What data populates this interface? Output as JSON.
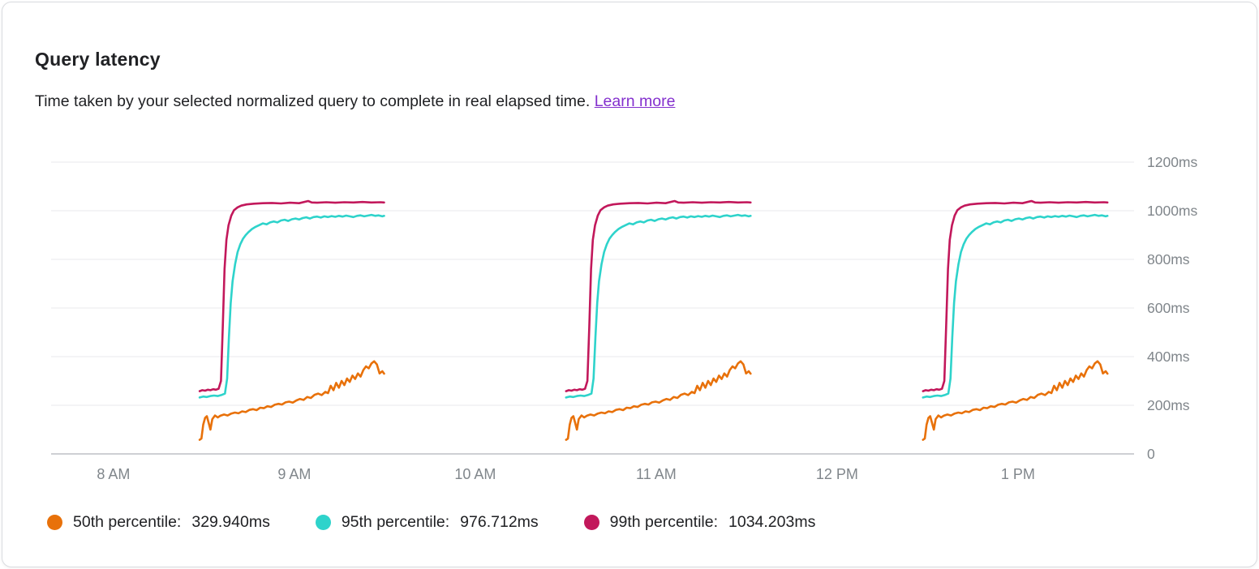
{
  "card": {
    "title": "Query latency",
    "description": "Time taken by your selected normalized query to complete in real elapsed time.",
    "learn_more_label": "Learn more"
  },
  "chart_data": {
    "type": "line",
    "title": "Query latency",
    "unit": "ms",
    "grid": true,
    "legend_position": "bottom",
    "x_axis": {
      "tick_hours": [
        8,
        9,
        10,
        11,
        12,
        13
      ],
      "tick_labels": [
        "8 AM",
        "9 AM",
        "10 AM",
        "11 AM",
        "12 PM",
        "1 PM"
      ],
      "range_hours": [
        7.655,
        13.642
      ]
    },
    "y_axis": {
      "position": "right",
      "ticks": [
        0,
        200,
        400,
        600,
        800,
        1000,
        1200
      ],
      "tick_labels": [
        "0",
        "200ms",
        "400ms",
        "600ms",
        "800ms",
        "1000ms",
        "1200ms"
      ],
      "range": [
        0,
        1200
      ]
    },
    "burst_start_hours": [
      8.476,
      10.502,
      12.475
    ],
    "series": [
      {
        "name": "50th percentile",
        "color": "#e8710a",
        "current_value": "329.940ms",
        "pattern_points": [
          [
            0.0,
            58
          ],
          [
            0.01,
            63
          ],
          [
            0.02,
            120
          ],
          [
            0.03,
            148
          ],
          [
            0.04,
            155
          ],
          [
            0.05,
            128
          ],
          [
            0.06,
            100
          ],
          [
            0.07,
            143
          ],
          [
            0.085,
            158
          ],
          [
            0.1,
            150
          ],
          [
            0.115,
            157
          ],
          [
            0.135,
            162
          ],
          [
            0.155,
            158
          ],
          [
            0.175,
            166
          ],
          [
            0.195,
            170
          ],
          [
            0.215,
            167
          ],
          [
            0.235,
            175
          ],
          [
            0.255,
            172
          ],
          [
            0.275,
            181
          ],
          [
            0.295,
            184
          ],
          [
            0.315,
            180
          ],
          [
            0.335,
            190
          ],
          [
            0.355,
            188
          ],
          [
            0.375,
            196
          ],
          [
            0.395,
            193
          ],
          [
            0.415,
            202
          ],
          [
            0.435,
            206
          ],
          [
            0.455,
            203
          ],
          [
            0.475,
            212
          ],
          [
            0.495,
            215
          ],
          [
            0.515,
            211
          ],
          [
            0.535,
            220
          ],
          [
            0.555,
            226
          ],
          [
            0.575,
            222
          ],
          [
            0.595,
            234
          ],
          [
            0.615,
            230
          ],
          [
            0.635,
            243
          ],
          [
            0.655,
            248
          ],
          [
            0.675,
            242
          ],
          [
            0.695,
            255
          ],
          [
            0.71,
            250
          ],
          [
            0.725,
            280
          ],
          [
            0.74,
            262
          ],
          [
            0.755,
            292
          ],
          [
            0.77,
            272
          ],
          [
            0.785,
            300
          ],
          [
            0.8,
            283
          ],
          [
            0.815,
            310
          ],
          [
            0.83,
            296
          ],
          [
            0.845,
            322
          ],
          [
            0.86,
            308
          ],
          [
            0.875,
            331
          ],
          [
            0.89,
            318
          ],
          [
            0.905,
            345
          ],
          [
            0.92,
            360
          ],
          [
            0.935,
            352
          ],
          [
            0.95,
            372
          ],
          [
            0.965,
            381
          ],
          [
            0.98,
            368
          ],
          [
            0.995,
            331
          ],
          [
            1.01,
            340
          ],
          [
            1.02,
            330
          ]
        ]
      },
      {
        "name": "95th percentile",
        "color": "#2ed3cb",
        "current_value": "976.712ms",
        "pattern_points": [
          [
            0.0,
            232
          ],
          [
            0.02,
            236
          ],
          [
            0.04,
            234
          ],
          [
            0.06,
            238
          ],
          [
            0.08,
            240
          ],
          [
            0.1,
            238
          ],
          [
            0.12,
            242
          ],
          [
            0.14,
            248
          ],
          [
            0.152,
            310
          ],
          [
            0.162,
            480
          ],
          [
            0.172,
            620
          ],
          [
            0.182,
            710
          ],
          [
            0.196,
            780
          ],
          [
            0.21,
            830
          ],
          [
            0.225,
            862
          ],
          [
            0.24,
            885
          ],
          [
            0.255,
            900
          ],
          [
            0.27,
            912
          ],
          [
            0.29,
            925
          ],
          [
            0.31,
            934
          ],
          [
            0.33,
            941
          ],
          [
            0.35,
            948
          ],
          [
            0.37,
            944
          ],
          [
            0.39,
            952
          ],
          [
            0.41,
            956
          ],
          [
            0.43,
            952
          ],
          [
            0.45,
            960
          ],
          [
            0.47,
            963
          ],
          [
            0.49,
            958
          ],
          [
            0.51,
            965
          ],
          [
            0.53,
            968
          ],
          [
            0.55,
            964
          ],
          [
            0.57,
            970
          ],
          [
            0.59,
            973
          ],
          [
            0.61,
            968
          ],
          [
            0.63,
            974
          ],
          [
            0.65,
            976
          ],
          [
            0.67,
            972
          ],
          [
            0.69,
            977
          ],
          [
            0.71,
            974
          ],
          [
            0.73,
            978
          ],
          [
            0.75,
            975
          ],
          [
            0.77,
            979
          ],
          [
            0.79,
            976
          ],
          [
            0.81,
            980
          ],
          [
            0.83,
            977
          ],
          [
            0.85,
            974
          ],
          [
            0.87,
            979
          ],
          [
            0.89,
            981
          ],
          [
            0.91,
            977
          ],
          [
            0.93,
            980
          ],
          [
            0.95,
            983
          ],
          [
            0.97,
            979
          ],
          [
            0.99,
            981
          ],
          [
            1.01,
            977
          ],
          [
            1.02,
            979
          ]
        ]
      },
      {
        "name": "99th percentile",
        "color": "#c2185b",
        "current_value": "1034.203ms",
        "pattern_points": [
          [
            0.0,
            258
          ],
          [
            0.015,
            262
          ],
          [
            0.03,
            260
          ],
          [
            0.045,
            264
          ],
          [
            0.06,
            262
          ],
          [
            0.075,
            266
          ],
          [
            0.09,
            264
          ],
          [
            0.105,
            268
          ],
          [
            0.118,
            300
          ],
          [
            0.128,
            520
          ],
          [
            0.138,
            760
          ],
          [
            0.148,
            880
          ],
          [
            0.16,
            940
          ],
          [
            0.175,
            980
          ],
          [
            0.19,
            1002
          ],
          [
            0.21,
            1014
          ],
          [
            0.23,
            1021
          ],
          [
            0.26,
            1026
          ],
          [
            0.3,
            1029
          ],
          [
            0.35,
            1031
          ],
          [
            0.4,
            1032
          ],
          [
            0.45,
            1030
          ],
          [
            0.5,
            1033
          ],
          [
            0.55,
            1031
          ],
          [
            0.6,
            1040
          ],
          [
            0.62,
            1034
          ],
          [
            0.65,
            1033
          ],
          [
            0.7,
            1035
          ],
          [
            0.75,
            1033
          ],
          [
            0.8,
            1035
          ],
          [
            0.85,
            1034
          ],
          [
            0.9,
            1036
          ],
          [
            0.95,
            1034
          ],
          [
            1.0,
            1035
          ],
          [
            1.02,
            1034
          ]
        ]
      }
    ]
  }
}
